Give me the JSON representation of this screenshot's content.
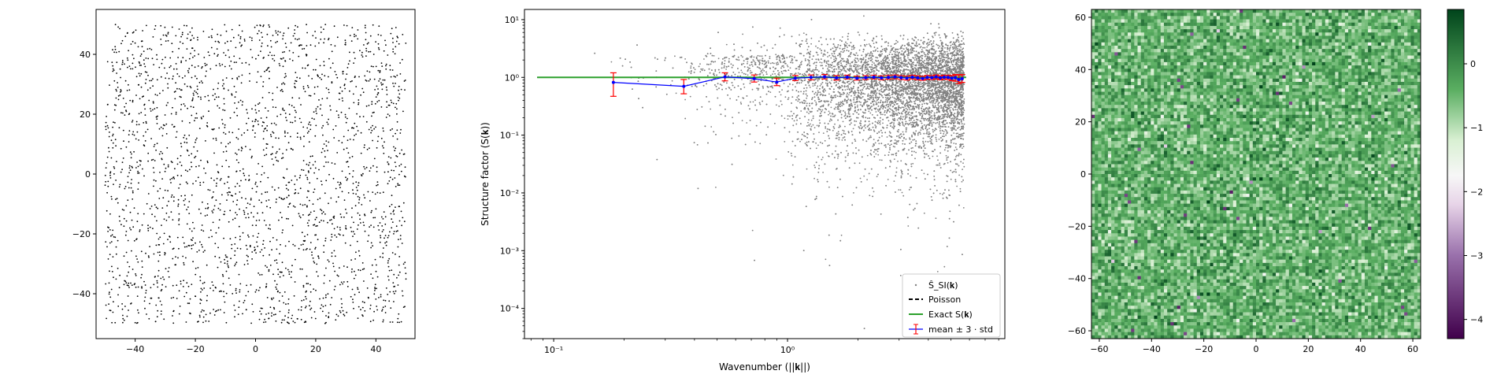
{
  "chart_data": [
    {
      "panel": "point-pattern",
      "type": "scatter",
      "title": "",
      "xlabel": "",
      "ylabel": "",
      "xlim": [
        -53,
        53
      ],
      "ylim": [
        -55,
        55
      ],
      "xticks": [
        -40,
        -20,
        0,
        20,
        40
      ],
      "yticks": [
        -40,
        -20,
        0,
        20,
        40
      ],
      "points_extent": {
        "x": [
          -50,
          50
        ],
        "y": [
          -50,
          50
        ]
      },
      "approx_point_count": 2500,
      "marker_color": "#000000",
      "grid": false
    },
    {
      "panel": "structure-factor",
      "type": "line",
      "title": "",
      "xlabel": "Wavenumber (||𝐤||)",
      "ylabel": "Structure factor (S(𝐤))",
      "xscale": "log",
      "yscale": "log",
      "xlim": [
        0.075,
        8.5
      ],
      "ylim": [
        3e-05,
        15
      ],
      "xtick_labels": [
        "10⁻¹",
        "10⁰"
      ],
      "ytick_labels": [
        "10⁻⁴",
        "10⁻³",
        "10⁻²",
        "10⁻¹",
        "10⁰",
        "10¹"
      ],
      "legend_position": "lower-right",
      "grid": false,
      "series": [
        {
          "name": "Ŝ_SI(𝐤)",
          "style": "scatter",
          "color": "#808080",
          "approx_points": 9000
        },
        {
          "name": "Poisson",
          "style": "dashed",
          "color": "#000000",
          "x": [
            0.085,
            5.8
          ],
          "y": [
            1.0,
            1.0
          ]
        },
        {
          "name": "Exact S(𝐤)",
          "style": "solid",
          "color": "#2ca02c",
          "x": [
            0.085,
            5.8
          ],
          "y": [
            1.0,
            1.0
          ]
        },
        {
          "name": "mean ± 3 · std",
          "style": "errorbar",
          "color": "#0000ff",
          "error_color": "#ff0000",
          "x": [
            0.18,
            0.36,
            0.54,
            0.72,
            0.9,
            1.08,
            1.26,
            1.44,
            1.62,
            1.8,
            1.98,
            2.16,
            2.34,
            2.52,
            2.7,
            2.88,
            3.06,
            3.24,
            3.42,
            3.6,
            3.78,
            3.96,
            4.14,
            4.32,
            4.5,
            4.68,
            4.86,
            5.04,
            5.22,
            5.4,
            5.58
          ],
          "y": [
            0.82,
            0.7,
            1.02,
            0.95,
            0.83,
            0.97,
            1.0,
            1.02,
            0.98,
            1.01,
            0.97,
            0.99,
            1.01,
            0.98,
            1.0,
            1.02,
            0.99,
            0.97,
            1.01,
            0.98,
            0.96,
            1.0,
            0.99,
            1.02,
            0.98,
            1.01,
            1.0,
            0.97,
            0.99,
            0.92,
            0.95
          ],
          "yerr_low": [
            0.47,
            0.52,
            0.87,
            0.83,
            0.72,
            0.88,
            0.91,
            0.94,
            0.9,
            0.94,
            0.9,
            0.92,
            0.94,
            0.91,
            0.93,
            0.95,
            0.92,
            0.9,
            0.94,
            0.91,
            0.89,
            0.93,
            0.92,
            0.95,
            0.91,
            0.94,
            0.92,
            0.88,
            0.86,
            0.78,
            0.82
          ],
          "yerr_high": [
            1.2,
            0.92,
            1.2,
            1.1,
            0.97,
            1.08,
            1.1,
            1.12,
            1.07,
            1.09,
            1.05,
            1.07,
            1.09,
            1.06,
            1.08,
            1.1,
            1.07,
            1.05,
            1.09,
            1.06,
            1.04,
            1.08,
            1.07,
            1.1,
            1.06,
            1.09,
            1.09,
            1.07,
            1.12,
            1.1,
            1.12
          ]
        }
      ]
    },
    {
      "panel": "field-heatmap",
      "type": "heatmap",
      "title": "",
      "xlabel": "",
      "ylabel": "",
      "xlim": [
        -63,
        63
      ],
      "ylim": [
        -63,
        63
      ],
      "xticks": [
        -60,
        -40,
        -20,
        0,
        20,
        40,
        60
      ],
      "yticks": [
        -60,
        -40,
        -20,
        0,
        20,
        40,
        60
      ],
      "grid_cells": 100,
      "colormap": "PRGn",
      "colorbar": {
        "range": [
          -4.3,
          0.85
        ],
        "ticks": [
          0,
          -1,
          -2,
          -3,
          -4
        ]
      },
      "colors": {
        "dark_green": "#00441b",
        "mid_green": "#5aae61",
        "light_green": "#d9f0d3",
        "white": "#f7f7f7",
        "light_purple": "#e7d4e8",
        "mid_purple": "#9970ab",
        "dark_purple": "#40004b"
      }
    }
  ]
}
